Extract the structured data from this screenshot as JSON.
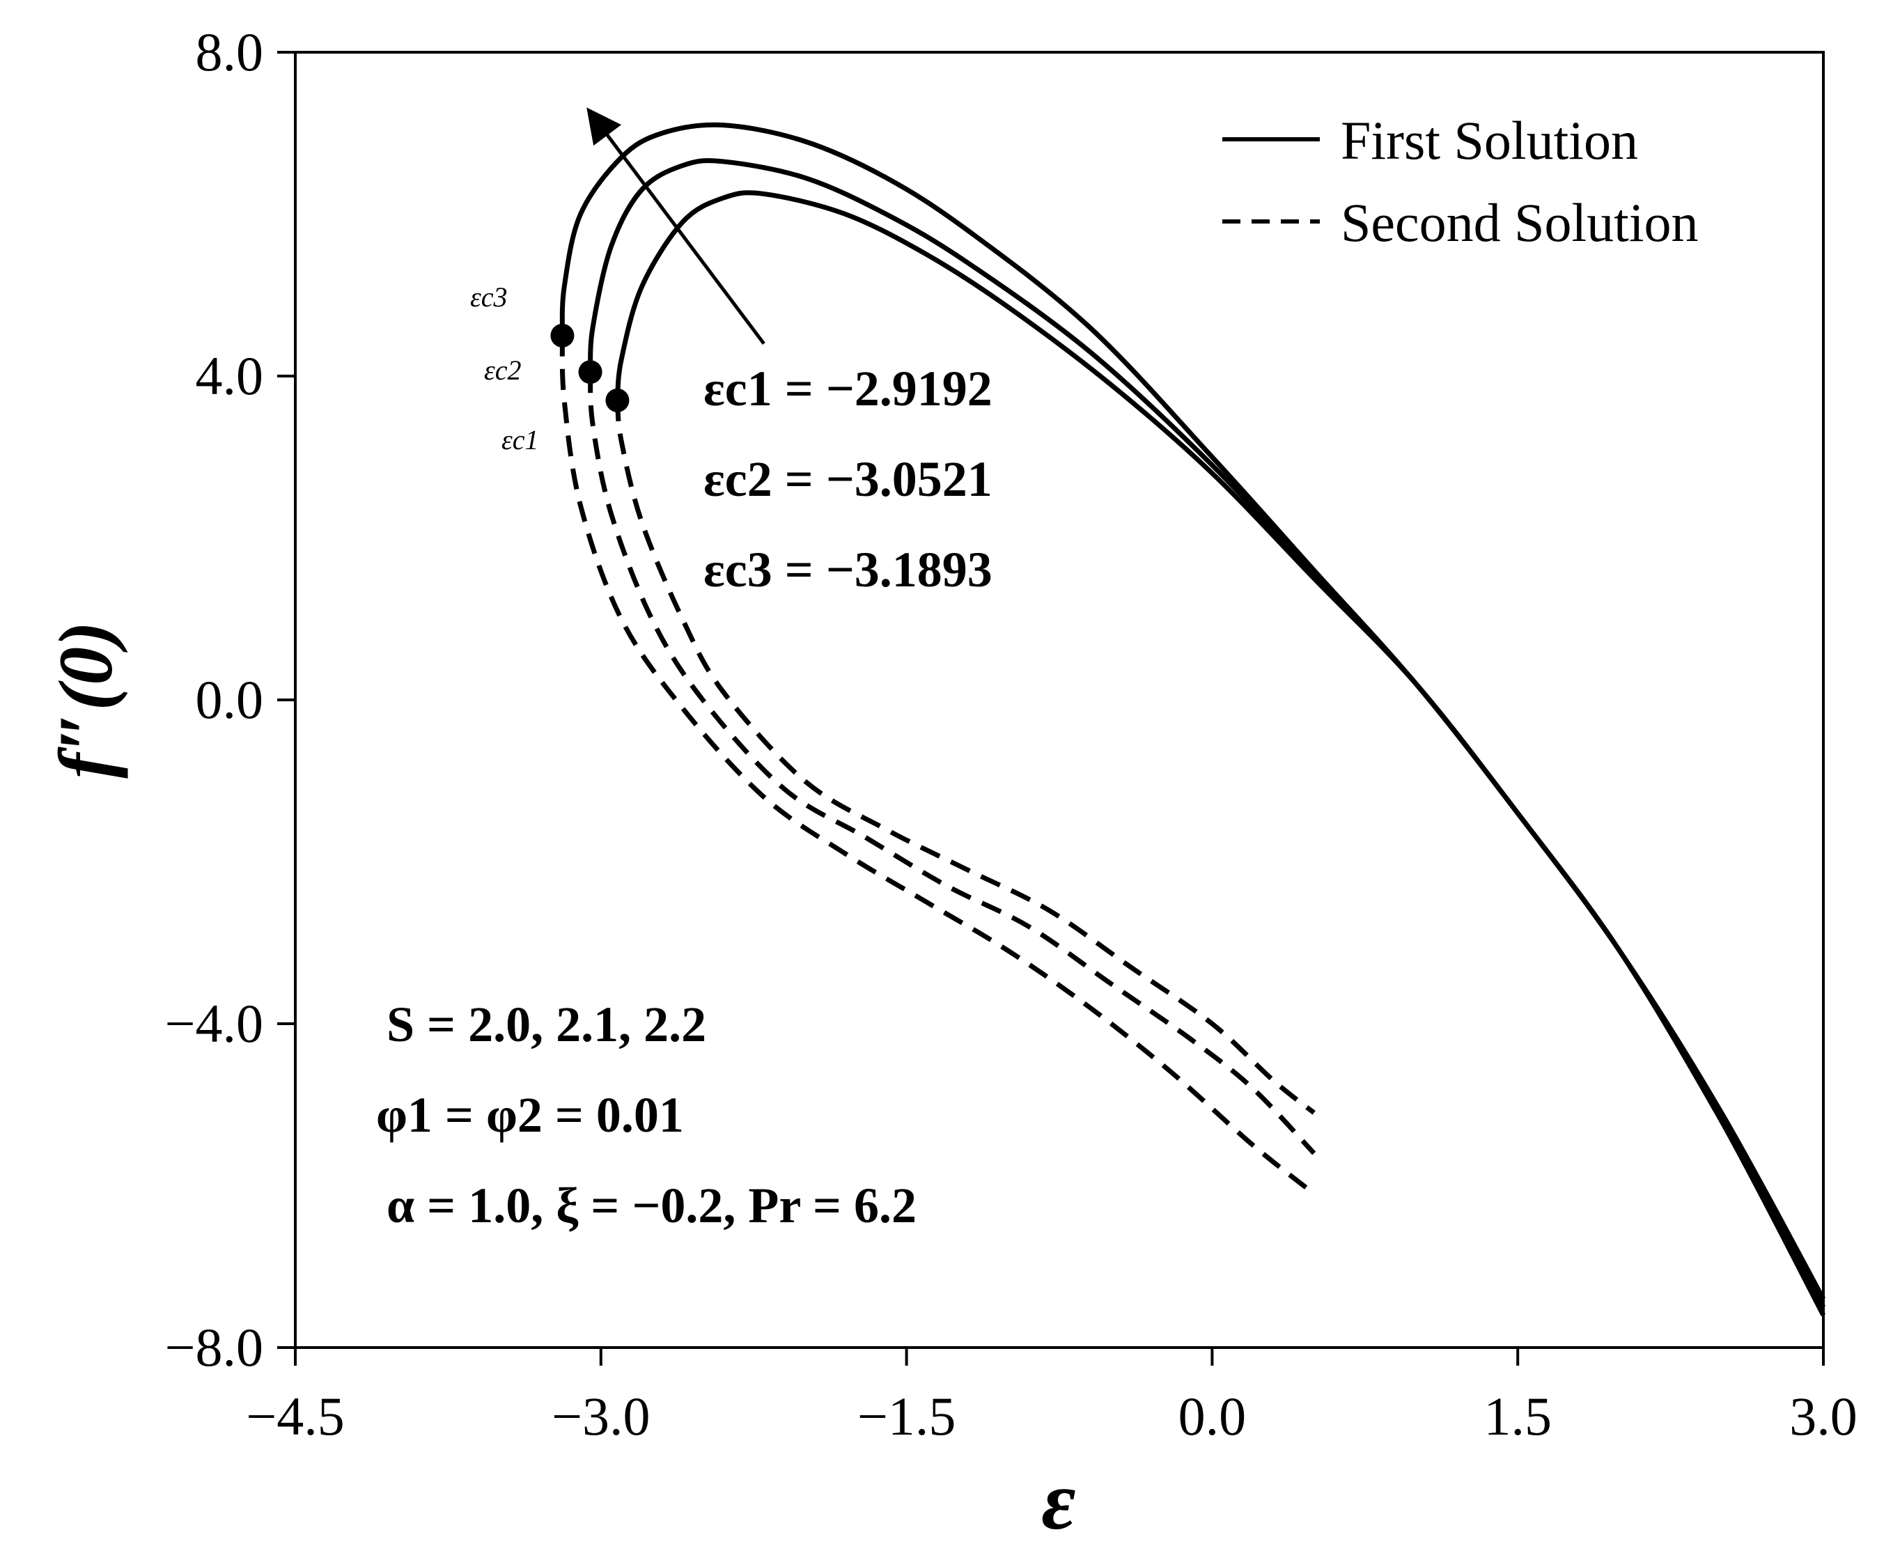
{
  "chart_data": {
    "type": "line",
    "xlabel": "ε",
    "ylabel": "f″(0)",
    "xlim": [
      -4.5,
      3.0
    ],
    "ylim": [
      -8.0,
      8.0
    ],
    "xticks": [
      -4.5,
      -3.0,
      -1.5,
      0.0,
      1.5,
      3.0
    ],
    "xtick_labels": [
      "−4.5",
      "−3.0",
      "−1.5",
      "0.0",
      "1.5",
      "3.0"
    ],
    "yticks": [
      8.0,
      4.0,
      0.0,
      -4.0,
      -8.0
    ],
    "ytick_labels": [
      "8.0",
      "4.0",
      "0.0",
      "−4.0",
      "−8.0"
    ],
    "legend": {
      "position": "top-right",
      "entries": [
        {
          "label": "First Solution",
          "style": "solid"
        },
        {
          "label": "Second Solution",
          "style": "dashed"
        }
      ]
    },
    "series": [
      {
        "name": "First Solution (S = 2.0)",
        "style": "solid",
        "x": [
          -2.9192,
          -2.9,
          -2.8,
          -2.6,
          -2.4,
          -2.2,
          -1.8,
          -1.4,
          -1.0,
          -0.5,
          0.0,
          0.5,
          1.0,
          1.5,
          2.0,
          2.5,
          3.0
        ],
        "y": [
          3.7,
          4.2,
          5.1,
          5.9,
          6.2,
          6.25,
          6.0,
          5.5,
          4.85,
          3.9,
          2.8,
          1.5,
          0.2,
          -1.4,
          -3.1,
          -5.2,
          -7.6
        ]
      },
      {
        "name": "First Solution (S = 2.1)",
        "style": "solid",
        "x": [
          -3.0521,
          -3.04,
          -2.95,
          -2.8,
          -2.6,
          -2.4,
          -2.0,
          -1.6,
          -1.2,
          -0.6,
          0.0,
          0.5,
          1.0,
          1.5,
          2.0,
          2.5,
          3.0
        ],
        "y": [
          4.05,
          4.6,
          5.6,
          6.3,
          6.6,
          6.65,
          6.45,
          6.0,
          5.4,
          4.3,
          2.9,
          1.55,
          0.2,
          -1.4,
          -3.1,
          -5.2,
          -7.5
        ]
      },
      {
        "name": "First Solution (S = 2.2)",
        "style": "solid",
        "x": [
          -3.1893,
          -3.18,
          -3.1,
          -2.9,
          -2.7,
          -2.4,
          -2.0,
          -1.6,
          -1.2,
          -0.6,
          0.0,
          0.5,
          1.0,
          1.5,
          2.0,
          2.5,
          3.0
        ],
        "y": [
          4.5,
          5.1,
          6.0,
          6.7,
          7.0,
          7.1,
          6.9,
          6.45,
          5.8,
          4.6,
          3.0,
          1.6,
          0.2,
          -1.4,
          -3.1,
          -5.1,
          -7.4
        ]
      },
      {
        "name": "Second Solution (S = 2.0)",
        "style": "dashed",
        "x": [
          -2.9192,
          -2.9,
          -2.8,
          -2.6,
          -2.4,
          -2.0,
          -1.6,
          -1.2,
          -0.8,
          -0.4,
          0.0,
          0.3,
          0.5
        ],
        "y": [
          3.7,
          3.2,
          2.2,
          1.0,
          0.1,
          -1.0,
          -1.6,
          -2.1,
          -2.6,
          -3.3,
          -4.0,
          -4.7,
          -5.1
        ]
      },
      {
        "name": "Second Solution (S = 2.1)",
        "style": "dashed",
        "x": [
          -3.0521,
          -3.04,
          -2.95,
          -2.75,
          -2.5,
          -2.1,
          -1.7,
          -1.3,
          -0.9,
          -0.5,
          -0.1,
          0.2,
          0.5
        ],
        "y": [
          4.05,
          3.4,
          2.3,
          1.0,
          0.0,
          -1.1,
          -1.7,
          -2.3,
          -2.8,
          -3.5,
          -4.2,
          -4.8,
          -5.6
        ]
      },
      {
        "name": "Second Solution (S = 2.2)",
        "style": "dashed",
        "x": [
          -3.1893,
          -3.18,
          -3.1,
          -2.9,
          -2.6,
          -2.2,
          -1.8,
          -1.4,
          -1.0,
          -0.6,
          -0.2,
          0.2,
          0.5
        ],
        "y": [
          4.5,
          3.7,
          2.4,
          1.0,
          -0.1,
          -1.2,
          -1.9,
          -2.5,
          -3.1,
          -3.8,
          -4.6,
          -5.5,
          -6.1
        ]
      }
    ],
    "critical_points": [
      {
        "label": "εc1",
        "x": -2.9192,
        "y": 3.7
      },
      {
        "label": "εc2",
        "x": -3.0521,
        "y": 4.05
      },
      {
        "label": "εc3",
        "x": -3.1893,
        "y": 4.5
      }
    ],
    "critical_values": [
      {
        "label": "εc1 = −2.9192"
      },
      {
        "label": "εc2 = −3.0521"
      },
      {
        "label": "εc3 = −3.1893"
      }
    ],
    "point_labels": [
      "εc3",
      "εc2",
      "εc1"
    ],
    "arrow": {
      "from": [
        -2.2,
        4.4
      ],
      "to": [
        -3.05,
        7.25
      ]
    },
    "annotations": {
      "s_values": "S = 2.0, 2.1, 2.2",
      "phi_values": "φ1 = φ2 = 0.01",
      "params": "α = 1.0, ξ = −0.2, Pr = 6.2"
    }
  }
}
